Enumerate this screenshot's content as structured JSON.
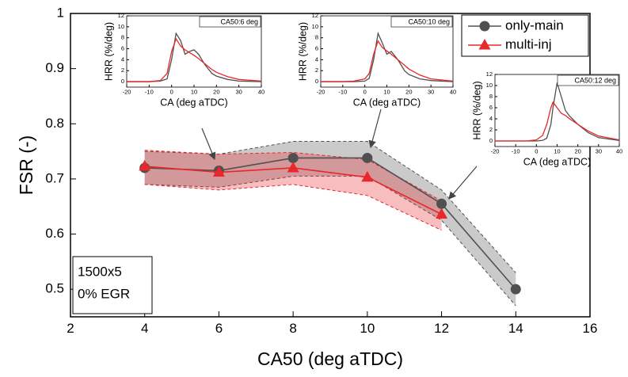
{
  "chart_data": [
    {
      "type": "line",
      "xlabel": "CA50 (deg aTDC)",
      "ylabel": "FSR (-)",
      "x": [
        4,
        6,
        8,
        10,
        12,
        14
      ],
      "xlim": [
        2,
        16
      ],
      "xticks": [
        2,
        4,
        6,
        8,
        10,
        12,
        14,
        16
      ],
      "ylim": [
        0.45,
        1.0
      ],
      "yticks": [
        0.5,
        0.6,
        0.7,
        0.8,
        0.9,
        1.0
      ],
      "legend": "top-right",
      "annotations": [
        "1500x5",
        "0% EGR"
      ],
      "series": [
        {
          "name": "only-main",
          "color": "#505050",
          "marker": "circle",
          "values": [
            0.72,
            0.715,
            0.738,
            0.738,
            0.655,
            0.5
          ],
          "upper": [
            0.75,
            0.745,
            0.768,
            0.768,
            0.68,
            0.53
          ],
          "lower": [
            0.69,
            0.685,
            0.705,
            0.705,
            0.625,
            0.47
          ]
        },
        {
          "name": "multi-inj",
          "color": "#e8282c",
          "marker": "triangle",
          "values": [
            0.723,
            0.712,
            0.72,
            0.703,
            0.636,
            null
          ],
          "upper": [
            0.752,
            0.745,
            0.748,
            0.735,
            0.66,
            null
          ],
          "lower": [
            0.69,
            0.68,
            0.69,
            0.67,
            0.607,
            null
          ]
        }
      ]
    },
    {
      "type": "line",
      "title": "CA50:6 deg",
      "xlabel": "CA (deg aTDC)",
      "ylabel": "HRR (%/deg)",
      "x": [
        -20,
        -10,
        -5,
        -2,
        0,
        2,
        4,
        6,
        8,
        10,
        12,
        15,
        18,
        20,
        25,
        30,
        40
      ],
      "xlim": [
        -20,
        40
      ],
      "xticks": [
        -20,
        -10,
        0,
        10,
        20,
        30,
        40
      ],
      "ylim": [
        -1,
        12
      ],
      "yticks": [
        0,
        2,
        4,
        6,
        8,
        10,
        12
      ],
      "series": [
        {
          "color": "#505050",
          "values": [
            0,
            0,
            0.1,
            0.5,
            4,
            8.8,
            7.5,
            5,
            5.5,
            5.8,
            5,
            3,
            1.5,
            1,
            0.4,
            0.1,
            0
          ]
        },
        {
          "color": "#e8282c",
          "values": [
            0,
            0,
            0.2,
            1.5,
            5.5,
            7.8,
            6.5,
            5.8,
            5.3,
            4.8,
            4.2,
            3.2,
            2.2,
            1.7,
            0.9,
            0.4,
            0.1
          ]
        }
      ]
    },
    {
      "type": "line",
      "title": "CA50:10 deg",
      "xlabel": "CA (deg aTDC)",
      "ylabel": "HRR (%/deg)",
      "x": [
        -20,
        -10,
        -5,
        0,
        2,
        4,
        6,
        8,
        10,
        12,
        15,
        18,
        20,
        25,
        30,
        40
      ],
      "xlim": [
        -20,
        40
      ],
      "xticks": [
        -20,
        -10,
        0,
        10,
        20,
        30,
        40
      ],
      "ylim": [
        -1,
        12
      ],
      "yticks": [
        0,
        2,
        4,
        6,
        8,
        10,
        12
      ],
      "series": [
        {
          "color": "#505050",
          "values": [
            0,
            0,
            0,
            0.1,
            0.6,
            4,
            8.8,
            7,
            5,
            5.5,
            4,
            2,
            1.3,
            0.5,
            0.2,
            0
          ]
        },
        {
          "color": "#e8282c",
          "values": [
            0,
            0,
            0.1,
            0.5,
            1.5,
            5,
            7.4,
            6.2,
            5.6,
            5,
            4,
            3,
            2.3,
            1.2,
            0.5,
            0.1
          ]
        }
      ]
    },
    {
      "type": "line",
      "title": "CA50:12 deg",
      "xlabel": "CA (deg aTDC)",
      "ylabel": "HRR (%/deg)",
      "x": [
        -20,
        -10,
        -5,
        0,
        3,
        5,
        7,
        8,
        10,
        12,
        14,
        16,
        20,
        25,
        30,
        40
      ],
      "xlim": [
        -20,
        40
      ],
      "xticks": [
        -20,
        -10,
        0,
        10,
        20,
        30,
        40
      ],
      "ylim": [
        -1,
        12
      ],
      "yticks": [
        0,
        2,
        4,
        6,
        8,
        10,
        12
      ],
      "series": [
        {
          "color": "#505050",
          "values": [
            0,
            0,
            0,
            0,
            0.1,
            0.5,
            3,
            6,
            10.5,
            8,
            5.5,
            4.5,
            3,
            1.5,
            0.6,
            0.1
          ]
        },
        {
          "color": "#e8282c",
          "values": [
            0,
            0,
            0,
            0.2,
            1,
            3,
            6,
            7,
            6,
            5,
            4.6,
            4,
            3,
            1.8,
            0.9,
            0.2
          ]
        }
      ]
    }
  ]
}
